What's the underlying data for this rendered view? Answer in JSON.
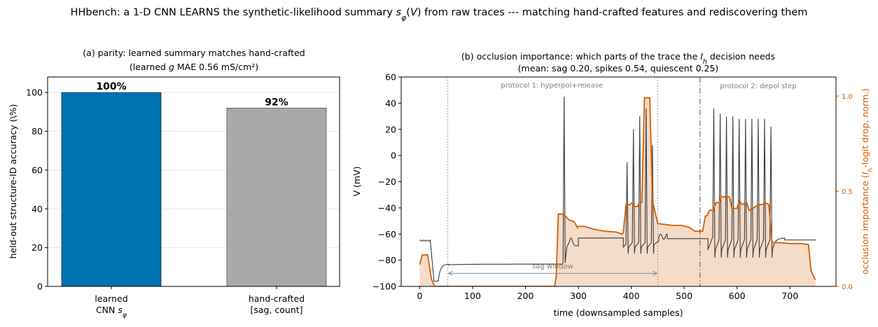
{
  "suptitle": "HHbench: a 1-D CNN LEARNS the synthetic-likelihood summary s_φ(V) from raw traces --- matching hand-crafted features and rediscovering them",
  "chart_data": [
    {
      "type": "bar",
      "title_line1": "(a) parity: learned summary matches hand-crafted",
      "title_line2": "(learned g MAE 0.56 mS/cm²)",
      "ylabel": "held-out structure-ID accuracy (\\%)",
      "categories": [
        [
          "learned",
          "CNN s_φ"
        ],
        [
          "hand-crafted",
          "[sag, count]"
        ]
      ],
      "values": [
        100,
        92
      ],
      "value_labels": [
        "100%",
        "92%"
      ],
      "colors": [
        "#0072b2",
        "#a8a8a8"
      ],
      "ylim": [
        0,
        108
      ],
      "yticks": [
        0,
        20,
        40,
        60,
        80,
        100
      ],
      "grid": "y"
    },
    {
      "type": "line",
      "title_line1": "(b) occlusion importance: which parts of the trace the I_h decision needs",
      "title_line2": "(mean: sag 0.20, spikes 0.54, quiescent 0.25)",
      "xlabel": "time (downsampled samples)",
      "ylabel": "V (mV)",
      "ylabel_right": "occlusion importance  (I_h-logit drop, norm.)",
      "xlim": [
        -35,
        787
      ],
      "ylim": [
        -100,
        60
      ],
      "xticks": [
        0,
        100,
        200,
        300,
        400,
        500,
        600,
        700
      ],
      "yticks": [
        -100,
        -80,
        -60,
        -40,
        -20,
        0,
        20,
        40,
        60
      ],
      "y2lim": [
        0,
        1.1
      ],
      "y2ticks": [
        "0.0",
        "0.5",
        "1.0"
      ],
      "y2tick_values": [
        0,
        0.5,
        1.0
      ],
      "importance_color": "#d55e00",
      "importance_fill": "#f5dcc8",
      "trace_color": "#3a3a3a",
      "annotations": {
        "protocol1": "protocol 1: hyperpol+release",
        "protocol2": "protocol 2: depol step",
        "sag_window": "sag window"
      },
      "vlines_dotted": [
        53,
        450
      ],
      "vline_dashdot": 530,
      "sag_window_range": [
        53,
        450
      ],
      "sag_window_y": -90,
      "importance": [
        [
          0,
          0.115
        ],
        [
          5,
          0.165
        ],
        [
          15,
          0.165
        ],
        [
          22,
          0.04
        ],
        [
          28,
          0
        ],
        [
          255,
          0
        ],
        [
          258,
          0.05
        ],
        [
          262,
          0.38
        ],
        [
          272,
          0.38
        ],
        [
          282,
          0.35
        ],
        [
          292,
          0.34
        ],
        [
          298,
          0.31
        ],
        [
          298,
          0.315
        ],
        [
          312,
          0.315
        ],
        [
          330,
          0.3
        ],
        [
          350,
          0.29
        ],
        [
          372,
          0.285
        ],
        [
          383,
          0.275
        ],
        [
          385,
          0.285
        ],
        [
          390,
          0.43
        ],
        [
          398,
          0.43
        ],
        [
          402,
          0.44
        ],
        [
          406,
          0.42
        ],
        [
          412,
          0.42
        ],
        [
          415,
          0.44
        ],
        [
          420,
          0.44
        ],
        [
          425,
          0.99
        ],
        [
          435,
          0.99
        ],
        [
          440,
          0.45
        ],
        [
          450,
          0.33
        ],
        [
          465,
          0.325
        ],
        [
          480,
          0.32
        ],
        [
          495,
          0.32
        ],
        [
          510,
          0.31
        ],
        [
          520,
          0.29
        ],
        [
          530,
          0.29
        ],
        [
          535,
          0.29
        ],
        [
          540,
          0.37
        ],
        [
          543,
          0.37
        ],
        [
          548,
          0.4
        ],
        [
          555,
          0.4
        ],
        [
          560,
          0.44
        ],
        [
          566,
          0.44
        ],
        [
          570,
          0.47
        ],
        [
          586,
          0.47
        ],
        [
          590,
          0.41
        ],
        [
          600,
          0.41
        ],
        [
          604,
          0.45
        ],
        [
          610,
          0.43
        ],
        [
          618,
          0.44
        ],
        [
          623,
          0.4
        ],
        [
          630,
          0.41
        ],
        [
          640,
          0.43
        ],
        [
          648,
          0.43
        ],
        [
          653,
          0.44
        ],
        [
          660,
          0.43
        ],
        [
          666,
          0.23
        ],
        [
          680,
          0.23
        ],
        [
          700,
          0.225
        ],
        [
          720,
          0.225
        ],
        [
          735,
          0.22
        ],
        [
          740,
          0.08
        ],
        [
          748,
          0.035
        ]
      ]
    }
  ]
}
